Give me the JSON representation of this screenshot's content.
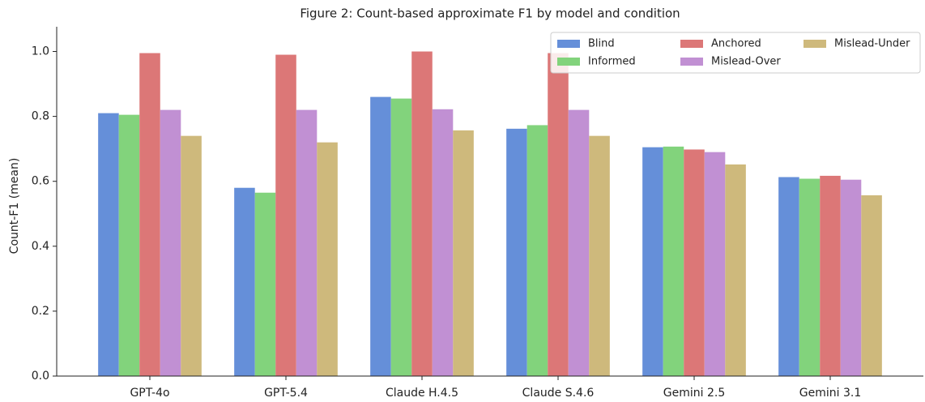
{
  "chart_data": {
    "type": "bar",
    "title": "Figure 2: Count-based approximate F1 by model and condition",
    "y_label": "Count-F1 (mean)",
    "categories": [
      "GPT-4o",
      "GPT-5.4",
      "Claude H.4.5",
      "Claude S.4.6",
      "Gemini 2.5",
      "Gemini 3.1"
    ],
    "series": [
      {
        "name": "Blind",
        "color": "#658fd9",
        "values": [
          0.81,
          0.58,
          0.86,
          0.762,
          0.705,
          0.613
        ]
      },
      {
        "name": "Informed",
        "color": "#82d37c",
        "values": [
          0.805,
          0.565,
          0.855,
          0.773,
          0.707,
          0.608
        ]
      },
      {
        "name": "Anchored",
        "color": "#dc7777",
        "values": [
          0.995,
          0.99,
          1.0,
          0.995,
          0.698,
          0.617
        ]
      },
      {
        "name": "Mislead-Over",
        "color": "#c190d3",
        "values": [
          0.82,
          0.82,
          0.822,
          0.82,
          0.69,
          0.605
        ]
      },
      {
        "name": "Mislead-Under",
        "color": "#ceb97c",
        "values": [
          0.74,
          0.72,
          0.757,
          0.74,
          0.652,
          0.557
        ]
      }
    ],
    "ylim": [
      0,
      1.05
    ],
    "yticks": [
      {
        "value": 0,
        "label": "0.0"
      },
      {
        "value": 0.2,
        "label": "0.2"
      },
      {
        "value": 0.4,
        "label": "0.4"
      },
      {
        "value": 0.6,
        "label": "0.6"
      },
      {
        "value": 0.8,
        "label": "0.8"
      },
      {
        "value": 1,
        "label": "1.0"
      }
    ],
    "legend": "upper right"
  }
}
